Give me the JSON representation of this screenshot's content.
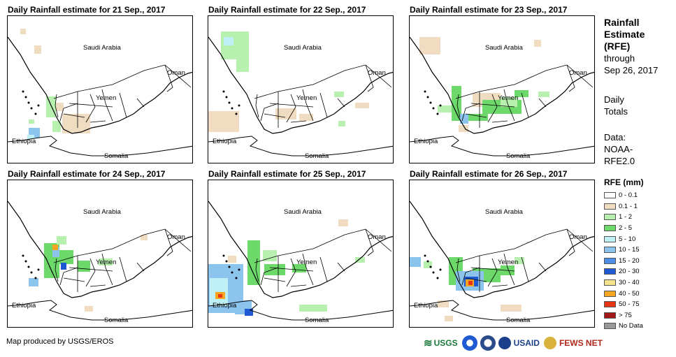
{
  "panels": [
    {
      "title": "Daily Rainfall estimate for 21 Sep., 2017"
    },
    {
      "title": "Daily Rainfall estimate for 22 Sep., 2017"
    },
    {
      "title": "Daily Rainfall estimate for 23 Sep., 2017"
    },
    {
      "title": "Daily Rainfall estimate for 24 Sep., 2017"
    },
    {
      "title": "Daily Rainfall estimate for 25 Sep., 2017"
    },
    {
      "title": "Daily Rainfall estimate for 26 Sep., 2017"
    }
  ],
  "map_labels": {
    "saudi": "Saudi Arabia",
    "oman": "Oman",
    "yemen": "Yemen",
    "ethiopia": "Ethiopia",
    "somalia": "Somalia"
  },
  "sidebar": {
    "title_line1": "Rainfall",
    "title_line2": "Estimate",
    "title_line3": "(RFE)",
    "through": "through",
    "date": "Sep 26, 2017",
    "daily1": "Daily",
    "daily2": "Totals",
    "data1": "Data:",
    "data2": "NOAA-",
    "data3": "RFE2.0"
  },
  "legend": {
    "title": "RFE (mm)",
    "items": [
      {
        "label": "0 - 0.1",
        "color": "#ffffff"
      },
      {
        "label": "0.1 - 1",
        "color": "#f0dcc0"
      },
      {
        "label": "1 - 2",
        "color": "#b8f0b0"
      },
      {
        "label": "2 - 5",
        "color": "#6cd96a"
      },
      {
        "label": "5 - 10",
        "color": "#bff0f5"
      },
      {
        "label": "10 - 15",
        "color": "#8cc4ee"
      },
      {
        "label": "15 - 20",
        "color": "#4d8ee6"
      },
      {
        "label": "20 - 30",
        "color": "#1f5ad2"
      },
      {
        "label": "30 - 40",
        "color": "#f5e28c"
      },
      {
        "label": "40 - 50",
        "color": "#f5a623"
      },
      {
        "label": "50 - 75",
        "color": "#e83515"
      },
      {
        "label": "> 75",
        "color": "#a01818"
      },
      {
        "label": "No Data",
        "color": "#999999"
      }
    ]
  },
  "footer": "Map produced by USGS/EROS",
  "logos": {
    "usgs": "USGS",
    "usaid": "USAID",
    "fews": "FEWS NET"
  }
}
